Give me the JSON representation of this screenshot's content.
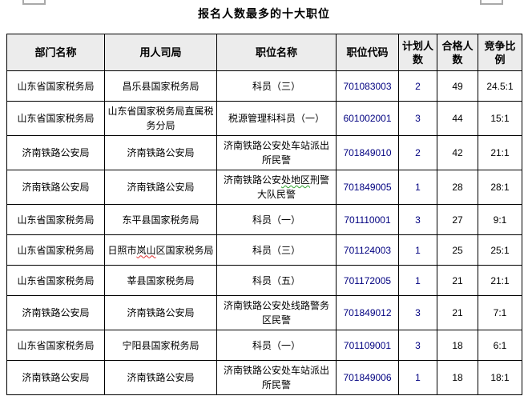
{
  "title": "报名人数最多的十大职位",
  "colors": {
    "border": "#000000",
    "header_bg": "#ececec",
    "code_text": "#000080",
    "spellcheck_red": "#e03030",
    "spellcheck_green": "#2da32d"
  },
  "table": {
    "headers": [
      "部门名称",
      "用人司局",
      "职位名称",
      "职位代码",
      "计划人数",
      "合格人数",
      "竞争比例"
    ],
    "columns": [
      {
        "key": "dept",
        "class": ""
      },
      {
        "key": "bureau",
        "class": ""
      },
      {
        "key": "position",
        "class": ""
      },
      {
        "key": "code",
        "class": "code-cell"
      },
      {
        "key": "plan",
        "class": "plan-cell"
      },
      {
        "key": "qualified",
        "class": ""
      },
      {
        "key": "ratio",
        "class": ""
      }
    ],
    "rows": [
      {
        "dept": "山东省国家税务局",
        "bureau": "昌乐县国家税务局",
        "position": "科员（三）",
        "code": "701083003",
        "plan": "2",
        "qualified": "49",
        "ratio": "24.5:1"
      },
      {
        "dept": "山东省国家税务局",
        "bureau": "山东省国家税务局直属税务分局",
        "position": "税源管理科科员（一）",
        "code": "601002001",
        "plan": "3",
        "qualified": "44",
        "ratio": "15:1"
      },
      {
        "dept": "济南铁路公安局",
        "bureau": "济南铁路公安局",
        "position": "济南铁路公安处车站派出所民警",
        "code": "701849010",
        "plan": "2",
        "qualified": "42",
        "ratio": "21:1"
      },
      {
        "dept": "济南铁路公安局",
        "bureau": "济南铁路公安局",
        "position": {
          "before": "济南铁路公安",
          "marked": "处地区",
          "after": "刑警大队民警",
          "mark": "green"
        },
        "code": "701849005",
        "plan": "1",
        "qualified": "28",
        "ratio": "28:1"
      },
      {
        "dept": "山东省国家税务局",
        "bureau": "东平县国家税务局",
        "position": "科员（一）",
        "code": "701110001",
        "plan": "3",
        "qualified": "27",
        "ratio": "9:1"
      },
      {
        "dept": "山东省国家税务局",
        "bureau": {
          "before": "日照市",
          "marked": "岚山",
          "after": "区国家税务局",
          "mark": "red"
        },
        "position": "科员（三）",
        "code": "701124003",
        "plan": "1",
        "qualified": "25",
        "ratio": "25:1"
      },
      {
        "dept": "山东省国家税务局",
        "bureau": "莘县国家税务局",
        "position": "科员（五）",
        "code": "701172005",
        "plan": "1",
        "qualified": "21",
        "ratio": "21:1"
      },
      {
        "dept": "济南铁路公安局",
        "bureau": "济南铁路公安局",
        "position": "济南铁路公安处线路警务区民警",
        "code": "701849012",
        "plan": "3",
        "qualified": "21",
        "ratio": "7:1"
      },
      {
        "dept": "山东省国家税务局",
        "bureau": "宁阳县国家税务局",
        "position": "科员（一）",
        "code": "701109001",
        "plan": "3",
        "qualified": "18",
        "ratio": "6:1"
      },
      {
        "dept": "济南铁路公安局",
        "bureau": "济南铁路公安局",
        "position": "济南铁路公安处车站派出所民警",
        "code": "701849006",
        "plan": "1",
        "qualified": "18",
        "ratio": "18:1"
      }
    ]
  }
}
